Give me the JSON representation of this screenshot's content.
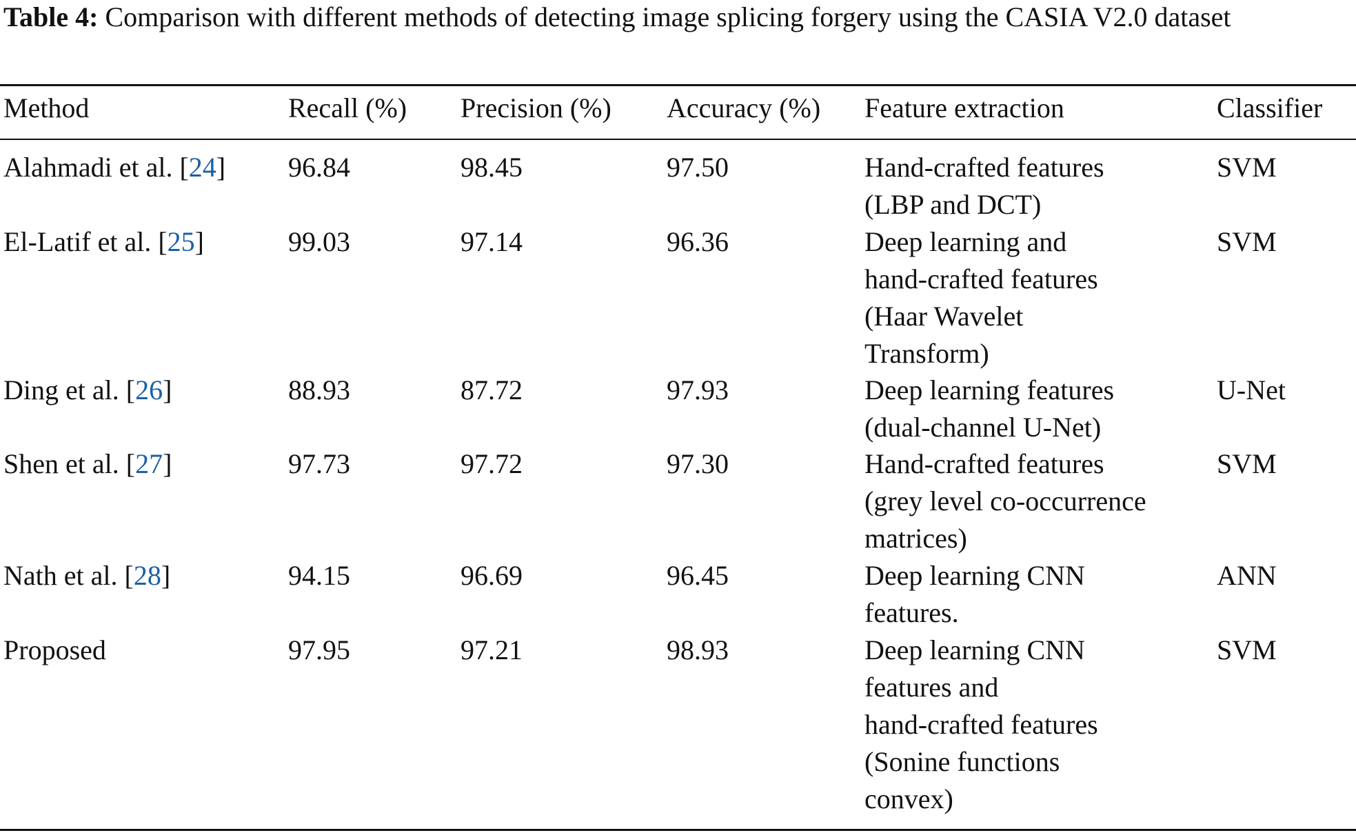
{
  "caption": {
    "label": "Table 4:",
    "text": " Comparison with different methods of detecting image splicing forgery using the CASIA V2.0 dataset"
  },
  "table": {
    "headers": {
      "method": "Method",
      "recall": "Recall (%)",
      "precision": "Precision (%)",
      "accuracy": "Accuracy (%)",
      "feature": "Feature extraction",
      "classifier": "Classifier"
    },
    "rows": [
      {
        "method": "Alahmadi et al. [",
        "ref": "24",
        "method_end": "]",
        "recall": "96.84",
        "precision": "98.45",
        "accuracy": "97.50",
        "feature_lines": [
          "Hand-crafted features",
          "(LBP and DCT)"
        ],
        "classifier": "SVM"
      },
      {
        "method": "El-Latif et al. [",
        "ref": "25",
        "method_end": "]",
        "recall": "99.03",
        "precision": "97.14",
        "accuracy": "96.36",
        "feature_lines": [
          "Deep learning and",
          "hand-crafted features",
          "(Haar Wavelet",
          "Transform)"
        ],
        "classifier": "SVM"
      },
      {
        "method": "Ding et al. [",
        "ref": "26",
        "method_end": "]",
        "recall": "88.93",
        "precision": "87.72",
        "accuracy": "97.93",
        "feature_lines": [
          "Deep learning features",
          "(dual-channel U-Net)"
        ],
        "classifier": "U-Net"
      },
      {
        "method": "Shen et al. [",
        "ref": "27",
        "method_end": "]",
        "recall": "97.73",
        "precision": "97.72",
        "accuracy": "97.30",
        "feature_lines": [
          "Hand-crafted features",
          "(grey level co-occurrence",
          "matrices)"
        ],
        "classifier": "SVM"
      },
      {
        "method": "Nath et al. [",
        "ref": "28",
        "method_end": "]",
        "recall": "94.15",
        "precision": "96.69",
        "accuracy": "96.45",
        "feature_lines": [
          "Deep learning CNN",
          "features."
        ],
        "classifier": "ANN"
      },
      {
        "method": "Proposed",
        "ref": "",
        "method_end": "",
        "recall": "97.95",
        "precision": "97.21",
        "accuracy": "98.93",
        "feature_lines": [
          "Deep learning CNN",
          "features and",
          "hand-crafted features",
          "(Sonine functions",
          "convex)"
        ],
        "classifier": "SVM"
      }
    ]
  }
}
